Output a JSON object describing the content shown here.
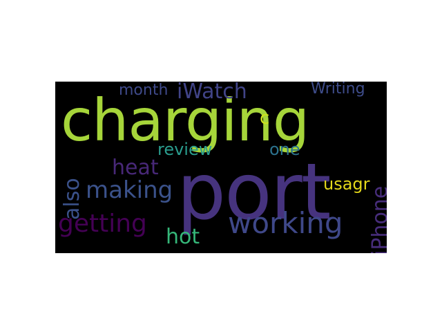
{
  "wordcloud": {
    "background": "#000000",
    "words": {
      "charging": {
        "text": "charging",
        "color": "#a6d53a"
      },
      "port": {
        "text": "port",
        "color": "#46337e"
      },
      "working": {
        "text": "working",
        "color": "#3f4889"
      },
      "getting": {
        "text": "getting",
        "color": "#440154"
      },
      "making": {
        "text": "making",
        "color": "#3b528b"
      },
      "heat": {
        "text": "heat",
        "color": "#482878"
      },
      "iWatch": {
        "text": "iWatch",
        "color": "#414487"
      },
      "month": {
        "text": "month",
        "color": "#3f4a8a"
      },
      "Writing": {
        "text": "Writing",
        "color": "#3e4c8a"
      },
      "review": {
        "text": "review",
        "color": "#2a9d8e"
      },
      "one": {
        "text": "one",
        "color": "#2c728e"
      },
      "usagr": {
        "text": "usagr",
        "color": "#e4d81a"
      },
      "hot": {
        "text": "hot",
        "color": "#35b779"
      },
      "c": {
        "text": "c",
        "color": "#cde11d"
      },
      "also": {
        "text": "also",
        "color": "#3b528b"
      },
      "iPhone": {
        "text": "iPhone",
        "color": "#472d7b"
      }
    }
  }
}
